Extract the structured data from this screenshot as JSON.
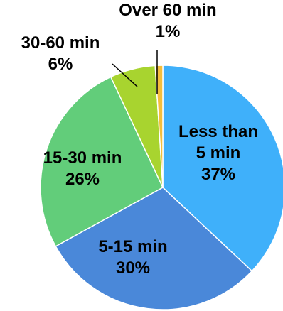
{
  "chart_data": {
    "type": "pie",
    "title": "",
    "slices": [
      {
        "label": [
          "Less than",
          "5 min"
        ],
        "pct_label": "37%",
        "value": 37,
        "color": "#3fb0fa"
      },
      {
        "label": [
          "5-15 min"
        ],
        "pct_label": "30%",
        "value": 30,
        "color": "#4a88d9"
      },
      {
        "label": [
          "15-30 min"
        ],
        "pct_label": "26%",
        "value": 26,
        "color": "#62cd7a"
      },
      {
        "label": [
          "30-60 min"
        ],
        "pct_label": "6%",
        "value": 6,
        "color": "#a8d42f"
      },
      {
        "label": [
          "Over 60 min"
        ],
        "pct_label": "1%",
        "value": 1,
        "color": "#f4be3c"
      }
    ]
  }
}
